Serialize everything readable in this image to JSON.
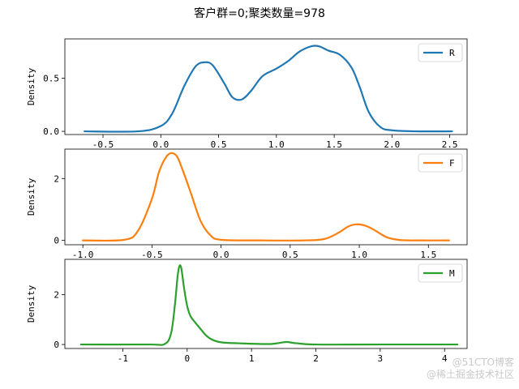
{
  "figure": {
    "title": "客户群=0;聚类数量=978",
    "watermark_lines": [
      "@51CTO博客",
      "@稀土掘金技术社区"
    ]
  },
  "chart_data": [
    {
      "type": "line",
      "legend": "R",
      "legend_position": "upper right",
      "ylabel": "Density",
      "color": "#1f77b4",
      "xlim": [
        -0.83,
        2.65
      ],
      "ylim": [
        -0.03,
        0.87
      ],
      "xticks": [
        -0.5,
        0.0,
        0.5,
        1.0,
        1.5,
        2.0,
        2.5
      ],
      "xtick_labels": [
        "-0.5",
        "0.0",
        "0.5",
        "1.0",
        "1.5",
        "2.0",
        "2.5"
      ],
      "yticks": [
        0.0,
        0.5
      ],
      "ytick_labels": [
        "0.0",
        "0.5"
      ],
      "grid": false,
      "x": [
        -0.66,
        -0.2,
        0.0,
        0.1,
        0.2,
        0.3,
        0.38,
        0.45,
        0.55,
        0.62,
        0.7,
        0.78,
        0.88,
        1.0,
        1.1,
        1.2,
        1.3,
        1.37,
        1.45,
        1.55,
        1.65,
        1.72,
        1.8,
        1.9,
        2.0,
        2.2,
        2.52
      ],
      "y": [
        0.0,
        0.0,
        0.05,
        0.17,
        0.42,
        0.61,
        0.65,
        0.62,
        0.45,
        0.32,
        0.3,
        0.38,
        0.52,
        0.59,
        0.66,
        0.75,
        0.8,
        0.8,
        0.76,
        0.72,
        0.6,
        0.42,
        0.18,
        0.04,
        0.01,
        0.0,
        0.0
      ]
    },
    {
      "type": "line",
      "legend": "F",
      "legend_position": "upper right",
      "ylabel": "Density",
      "color": "#ff7f0e",
      "xlim": [
        -1.13,
        1.78
      ],
      "ylim": [
        -0.14,
        2.95
      ],
      "xticks": [
        -1.0,
        -0.5,
        0.0,
        0.5,
        1.0,
        1.5
      ],
      "xtick_labels": [
        "-1.0",
        "-0.5",
        "0.0",
        "0.5",
        "1.0",
        "1.5"
      ],
      "yticks": [
        0,
        2
      ],
      "ytick_labels": [
        "0",
        "2"
      ],
      "grid": false,
      "x": [
        -1.0,
        -0.7,
        -0.6,
        -0.5,
        -0.45,
        -0.4,
        -0.36,
        -0.32,
        -0.28,
        -0.22,
        -0.15,
        -0.08,
        0.0,
        0.3,
        0.6,
        0.75,
        0.85,
        0.92,
        0.98,
        1.04,
        1.1,
        1.2,
        1.3,
        1.45,
        1.65
      ],
      "y": [
        0.0,
        0.02,
        0.32,
        1.35,
        2.2,
        2.68,
        2.82,
        2.72,
        2.3,
        1.55,
        0.65,
        0.18,
        0.02,
        0.0,
        0.0,
        0.05,
        0.25,
        0.45,
        0.52,
        0.48,
        0.36,
        0.1,
        0.01,
        0.0,
        0.0
      ]
    },
    {
      "type": "line",
      "legend": "M",
      "legend_position": "upper right",
      "ylabel": "Density",
      "color": "#2ca02c",
      "xlim": [
        -1.9,
        4.35
      ],
      "ylim": [
        -0.16,
        3.42
      ],
      "xticks": [
        -1,
        0,
        1,
        2,
        3,
        4
      ],
      "xtick_labels": [
        "-1",
        "0",
        "1",
        "2",
        "3",
        "4"
      ],
      "yticks": [
        0,
        2
      ],
      "ytick_labels": [
        "0",
        "2"
      ],
      "grid": false,
      "x": [
        -1.65,
        -0.6,
        -0.35,
        -0.25,
        -0.19,
        -0.15,
        -0.12,
        -0.09,
        -0.05,
        0.0,
        0.05,
        0.12,
        0.2,
        0.3,
        0.4,
        0.55,
        0.8,
        1.0,
        1.3,
        1.45,
        1.55,
        1.7,
        2.0,
        3.0,
        4.2
      ],
      "y": [
        0.0,
        0.0,
        0.02,
        0.45,
        1.6,
        2.7,
        3.15,
        3.05,
        2.3,
        1.55,
        1.15,
        0.9,
        0.65,
        0.35,
        0.18,
        0.08,
        0.05,
        0.03,
        0.02,
        0.07,
        0.1,
        0.05,
        0.0,
        0.0,
        0.0
      ]
    }
  ]
}
